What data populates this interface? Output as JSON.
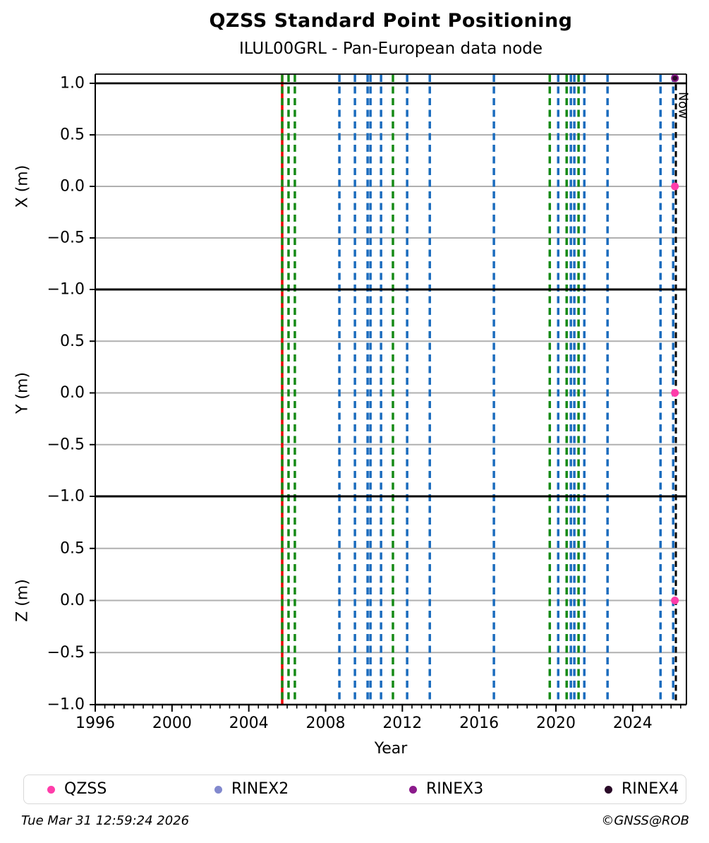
{
  "header": {
    "title": "QZSS Standard Point Positioning",
    "subtitle": "ILUL00GRL - Pan-European data node"
  },
  "chart_data": {
    "type": "scatter",
    "title": "QZSS Standard Point Positioning",
    "subtitle": "ILUL00GRL - Pan-European data node",
    "xlabel": "Year",
    "xlim": [
      1996,
      2026.8
    ],
    "x_major_ticks": [
      1996,
      2000,
      2004,
      2008,
      2012,
      2016,
      2020,
      2024
    ],
    "x_minor_tick_step": 0.5,
    "grid": "horizontal-only",
    "grid_color": "#b0b0b0",
    "panels": [
      {
        "ylabel": "X (m)",
        "ylim": [
          -1.0,
          1.09
        ],
        "yticks": [
          1.0,
          0.5,
          0.0,
          -0.5,
          -1.0
        ],
        "gridlines": [
          0.5,
          0.0,
          -0.5
        ],
        "points": [
          {
            "series": "RINEX3",
            "x": 2026.2,
            "y": 1.05
          },
          {
            "series": "RINEX4",
            "x": 2026.2,
            "y": 1.05,
            "r": 3.5
          },
          {
            "series": "QZSS",
            "x": 2026.2,
            "y": 0.0
          }
        ]
      },
      {
        "ylabel": "Y (m)",
        "ylim": [
          -1.0,
          1.0
        ],
        "yticks": [
          0.5,
          0.0,
          -0.5,
          -1.0
        ],
        "gridlines": [
          0.5,
          0.0,
          -0.5
        ],
        "points": [
          {
            "series": "QZSS",
            "x": 2026.2,
            "y": 0.0
          }
        ]
      },
      {
        "ylabel": "Z (m)",
        "ylim": [
          -1.0,
          1.0
        ],
        "yticks": [
          0.5,
          0.0,
          -0.5,
          -1.0
        ],
        "gridlines": [
          0.5,
          0.0,
          -0.5
        ],
        "points": [
          {
            "series": "QZSS",
            "x": 2026.2,
            "y": 0.0
          }
        ]
      }
    ],
    "event_lines": [
      {
        "year": 2005.74,
        "color": "#ee0000",
        "style": "solid"
      },
      {
        "year": 2005.74,
        "color": "#168a16",
        "style": "dashed"
      },
      {
        "year": 2006.07,
        "color": "#168a16",
        "style": "dashed"
      },
      {
        "year": 2006.4,
        "color": "#168a16",
        "style": "dashed"
      },
      {
        "year": 2008.72,
        "color": "#1b6cbe",
        "style": "dashed"
      },
      {
        "year": 2009.53,
        "color": "#1b6cbe",
        "style": "dashed"
      },
      {
        "year": 2010.19,
        "color": "#1b6cbe",
        "style": "dashed"
      },
      {
        "year": 2010.34,
        "color": "#1b6cbe",
        "style": "dashed"
      },
      {
        "year": 2010.89,
        "color": "#1b6cbe",
        "style": "dashed"
      },
      {
        "year": 2011.51,
        "color": "#168a16",
        "style": "dashed"
      },
      {
        "year": 2012.25,
        "color": "#1b6cbe",
        "style": "dashed"
      },
      {
        "year": 2013.43,
        "color": "#1b6cbe",
        "style": "dashed"
      },
      {
        "year": 2016.77,
        "color": "#1b6cbe",
        "style": "dashed"
      },
      {
        "year": 2019.68,
        "color": "#168a16",
        "style": "dashed"
      },
      {
        "year": 2020.12,
        "color": "#1b6cbe",
        "style": "dashed"
      },
      {
        "year": 2020.56,
        "color": "#168a16",
        "style": "dashed"
      },
      {
        "year": 2020.78,
        "color": "#1b6cbe",
        "style": "dashed"
      },
      {
        "year": 2020.96,
        "color": "#1b6cbe",
        "style": "dashed"
      },
      {
        "year": 2021.18,
        "color": "#168a16",
        "style": "dashed"
      },
      {
        "year": 2021.48,
        "color": "#1b6cbe",
        "style": "dashed"
      },
      {
        "year": 2022.69,
        "color": "#1b6cbe",
        "style": "dashed"
      },
      {
        "year": 2025.45,
        "color": "#1b6cbe",
        "style": "dashed"
      },
      {
        "year": 2026.11,
        "color": "#1b6cbe",
        "style": "dashed"
      }
    ],
    "now_line": {
      "year": 2026.25,
      "label": "Now",
      "color": "#000000",
      "style": "dashed"
    },
    "series_colors": {
      "QZSS": "#ff3daa",
      "RINEX2": "#8289ce",
      "RINEX3": "#8b1a8b",
      "RINEX4": "#2a0a28"
    }
  },
  "legend": {
    "items": [
      {
        "label": "QZSS",
        "color": "#ff3daa"
      },
      {
        "label": "RINEX2",
        "color": "#8289ce"
      },
      {
        "label": "RINEX3",
        "color": "#8b1a8b"
      },
      {
        "label": "RINEX4",
        "color": "#2a0a28"
      }
    ]
  },
  "footer": {
    "timestamp": "Tue Mar 31 12:59:24 2026",
    "credit": "©GNSS@ROB"
  }
}
